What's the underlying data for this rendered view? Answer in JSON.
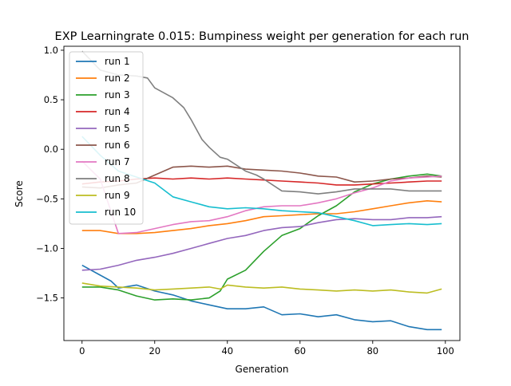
{
  "chart_data": {
    "type": "line",
    "title": "EXP Learningrate 0.015: Bumpiness weight per generation for each run",
    "xlabel": "Generation",
    "ylabel": "Score",
    "xlim": [
      -5,
      104
    ],
    "ylim": [
      -1.93,
      1.04
    ],
    "xticks": [
      0,
      20,
      40,
      60,
      80,
      100
    ],
    "yticks": [
      -1.5,
      -1.0,
      -0.5,
      0.0,
      0.5,
      1.0
    ],
    "xtick_labels": [
      "0",
      "20",
      "40",
      "60",
      "80",
      "100"
    ],
    "ytick_labels": [
      "−1.5",
      "−1.0",
      "−0.5",
      "0.0",
      "0.5",
      "1.0"
    ],
    "grid": false,
    "legend_position": "top-left",
    "series": [
      {
        "name": "run 1",
        "color": "#1f77b4",
        "points": [
          [
            0,
            -1.17
          ],
          [
            5,
            -1.27
          ],
          [
            8,
            -1.33
          ],
          [
            10,
            -1.4
          ],
          [
            15,
            -1.37
          ],
          [
            20,
            -1.43
          ],
          [
            25,
            -1.47
          ],
          [
            30,
            -1.53
          ],
          [
            35,
            -1.57
          ],
          [
            40,
            -1.61
          ],
          [
            45,
            -1.61
          ],
          [
            50,
            -1.59
          ],
          [
            55,
            -1.67
          ],
          [
            60,
            -1.66
          ],
          [
            65,
            -1.69
          ],
          [
            70,
            -1.67
          ],
          [
            75,
            -1.72
          ],
          [
            80,
            -1.74
          ],
          [
            85,
            -1.73
          ],
          [
            90,
            -1.79
          ],
          [
            95,
            -1.82
          ],
          [
            99,
            -1.82
          ]
        ]
      },
      {
        "name": "run 2",
        "color": "#ff7f0e",
        "points": [
          [
            0,
            -0.82
          ],
          [
            5,
            -0.82
          ],
          [
            10,
            -0.85
          ],
          [
            15,
            -0.85
          ],
          [
            20,
            -0.84
          ],
          [
            25,
            -0.82
          ],
          [
            30,
            -0.8
          ],
          [
            35,
            -0.77
          ],
          [
            40,
            -0.75
          ],
          [
            45,
            -0.72
          ],
          [
            50,
            -0.68
          ],
          [
            55,
            -0.67
          ],
          [
            60,
            -0.66
          ],
          [
            65,
            -0.65
          ],
          [
            70,
            -0.65
          ],
          [
            75,
            -0.63
          ],
          [
            80,
            -0.6
          ],
          [
            85,
            -0.57
          ],
          [
            90,
            -0.54
          ],
          [
            95,
            -0.52
          ],
          [
            99,
            -0.53
          ]
        ]
      },
      {
        "name": "run 3",
        "color": "#2ca02c",
        "points": [
          [
            0,
            -1.39
          ],
          [
            5,
            -1.39
          ],
          [
            10,
            -1.42
          ],
          [
            15,
            -1.48
          ],
          [
            20,
            -1.52
          ],
          [
            25,
            -1.51
          ],
          [
            30,
            -1.52
          ],
          [
            35,
            -1.5
          ],
          [
            38,
            -1.43
          ],
          [
            40,
            -1.31
          ],
          [
            45,
            -1.22
          ],
          [
            50,
            -1.03
          ],
          [
            55,
            -0.87
          ],
          [
            60,
            -0.8
          ],
          [
            65,
            -0.67
          ],
          [
            70,
            -0.57
          ],
          [
            75,
            -0.43
          ],
          [
            80,
            -0.35
          ],
          [
            85,
            -0.3
          ],
          [
            90,
            -0.27
          ],
          [
            95,
            -0.25
          ],
          [
            99,
            -0.27
          ]
        ]
      },
      {
        "name": "run 4",
        "color": "#d62728",
        "points": [
          [
            0,
            -0.35
          ],
          [
            5,
            -0.33
          ],
          [
            10,
            -0.32
          ],
          [
            15,
            -0.3
          ],
          [
            20,
            -0.29
          ],
          [
            25,
            -0.3
          ],
          [
            30,
            -0.29
          ],
          [
            35,
            -0.3
          ],
          [
            40,
            -0.29
          ],
          [
            45,
            -0.3
          ],
          [
            50,
            -0.31
          ],
          [
            55,
            -0.32
          ],
          [
            60,
            -0.33
          ],
          [
            65,
            -0.34
          ],
          [
            70,
            -0.36
          ],
          [
            75,
            -0.36
          ],
          [
            80,
            -0.35
          ],
          [
            85,
            -0.34
          ],
          [
            90,
            -0.33
          ],
          [
            95,
            -0.32
          ],
          [
            99,
            -0.32
          ]
        ]
      },
      {
        "name": "run 5",
        "color": "#9467bd",
        "points": [
          [
            0,
            -1.22
          ],
          [
            5,
            -1.21
          ],
          [
            10,
            -1.17
          ],
          [
            15,
            -1.12
          ],
          [
            20,
            -1.09
          ],
          [
            25,
            -1.05
          ],
          [
            30,
            -1.0
          ],
          [
            35,
            -0.95
          ],
          [
            40,
            -0.9
          ],
          [
            45,
            -0.87
          ],
          [
            50,
            -0.82
          ],
          [
            55,
            -0.79
          ],
          [
            60,
            -0.78
          ],
          [
            65,
            -0.74
          ],
          [
            70,
            -0.71
          ],
          [
            75,
            -0.7
          ],
          [
            80,
            -0.71
          ],
          [
            85,
            -0.71
          ],
          [
            90,
            -0.69
          ],
          [
            95,
            -0.69
          ],
          [
            99,
            -0.68
          ]
        ]
      },
      {
        "name": "run 6",
        "color": "#8c564b",
        "points": [
          [
            0,
            -0.38
          ],
          [
            5,
            -0.39
          ],
          [
            10,
            -0.36
          ],
          [
            15,
            -0.34
          ],
          [
            20,
            -0.26
          ],
          [
            25,
            -0.18
          ],
          [
            30,
            -0.17
          ],
          [
            35,
            -0.18
          ],
          [
            40,
            -0.17
          ],
          [
            45,
            -0.2
          ],
          [
            50,
            -0.21
          ],
          [
            55,
            -0.22
          ],
          [
            60,
            -0.24
          ],
          [
            65,
            -0.27
          ],
          [
            70,
            -0.28
          ],
          [
            75,
            -0.33
          ],
          [
            80,
            -0.32
          ],
          [
            85,
            -0.3
          ],
          [
            90,
            -0.29
          ],
          [
            95,
            -0.27
          ],
          [
            99,
            -0.28
          ]
        ]
      },
      {
        "name": "run 7",
        "color": "#e377c2",
        "points": [
          [
            0,
            -0.12
          ],
          [
            5,
            -0.3
          ],
          [
            10,
            -0.85
          ],
          [
            15,
            -0.84
          ],
          [
            20,
            -0.8
          ],
          [
            25,
            -0.76
          ],
          [
            30,
            -0.73
          ],
          [
            35,
            -0.72
          ],
          [
            40,
            -0.68
          ],
          [
            45,
            -0.62
          ],
          [
            50,
            -0.58
          ],
          [
            55,
            -0.57
          ],
          [
            60,
            -0.57
          ],
          [
            65,
            -0.54
          ],
          [
            70,
            -0.5
          ],
          [
            75,
            -0.44
          ],
          [
            80,
            -0.39
          ],
          [
            85,
            -0.32
          ],
          [
            90,
            -0.29
          ],
          [
            95,
            -0.28
          ],
          [
            99,
            -0.27
          ]
        ]
      },
      {
        "name": "run 8",
        "color": "#7f7f7f",
        "points": [
          [
            0,
            -0.26
          ],
          [
            5,
            -0.38
          ],
          [
            10,
            -0.42
          ],
          [
            15,
            -0.4
          ],
          [
            18,
            -0.38
          ],
          [
            20,
            -0.33
          ],
          [
            22,
            -0.38
          ],
          [
            25,
            -0.42
          ],
          [
            30,
            -0.44
          ],
          [
            35,
            -0.46
          ],
          [
            40,
            -0.48
          ],
          [
            45,
            -0.5
          ],
          [
            50,
            -0.46
          ],
          [
            55,
            -0.42
          ],
          [
            60,
            -0.43
          ],
          [
            65,
            -0.45
          ],
          [
            70,
            -0.43
          ],
          [
            75,
            -0.4
          ],
          [
            80,
            -0.4
          ],
          [
            85,
            -0.4
          ],
          [
            90,
            -0.42
          ],
          [
            95,
            -0.42
          ],
          [
            99,
            -0.42
          ]
        ]
      },
      {
        "name": "run 9",
        "color": "#bcbd22",
        "points": [
          [
            0,
            -1.35
          ],
          [
            5,
            -1.38
          ],
          [
            10,
            -1.39
          ],
          [
            15,
            -1.4
          ],
          [
            20,
            -1.42
          ],
          [
            25,
            -1.41
          ],
          [
            30,
            -1.4
          ],
          [
            35,
            -1.39
          ],
          [
            38,
            -1.41
          ],
          [
            40,
            -1.37
          ],
          [
            45,
            -1.39
          ],
          [
            50,
            -1.4
          ],
          [
            55,
            -1.39
          ],
          [
            60,
            -1.41
          ],
          [
            65,
            -1.42
          ],
          [
            70,
            -1.43
          ],
          [
            75,
            -1.42
          ],
          [
            80,
            -1.43
          ],
          [
            85,
            -1.42
          ],
          [
            90,
            -1.44
          ],
          [
            95,
            -1.45
          ],
          [
            99,
            -1.41
          ]
        ]
      },
      {
        "name": "run 10",
        "color": "#17becf",
        "points": [
          [
            0,
            0.13
          ],
          [
            5,
            -0.06
          ],
          [
            10,
            -0.22
          ],
          [
            15,
            -0.28
          ],
          [
            20,
            -0.34
          ],
          [
            25,
            -0.48
          ],
          [
            30,
            -0.53
          ],
          [
            35,
            -0.58
          ],
          [
            40,
            -0.6
          ],
          [
            45,
            -0.59
          ],
          [
            50,
            -0.6
          ],
          [
            55,
            -0.62
          ],
          [
            60,
            -0.63
          ],
          [
            65,
            -0.64
          ],
          [
            70,
            -0.68
          ],
          [
            75,
            -0.72
          ],
          [
            80,
            -0.77
          ],
          [
            85,
            -0.76
          ],
          [
            90,
            -0.75
          ],
          [
            95,
            -0.76
          ],
          [
            99,
            -0.75
          ]
        ]
      }
    ],
    "extra_peak": {
      "note_series": "run 8",
      "points": [
        [
          0,
          0.99
        ],
        [
          5,
          0.8
        ],
        [
          10,
          0.75
        ],
        [
          15,
          0.74
        ],
        [
          18,
          0.72
        ],
        [
          20,
          0.62
        ],
        [
          25,
          0.52
        ],
        [
          28,
          0.42
        ],
        [
          30,
          0.3
        ],
        [
          33,
          0.1
        ],
        [
          35,
          0.02
        ],
        [
          38,
          -0.08
        ],
        [
          40,
          -0.1
        ],
        [
          45,
          -0.22
        ],
        [
          48,
          -0.26
        ],
        [
          50,
          -0.3
        ]
      ]
    }
  }
}
